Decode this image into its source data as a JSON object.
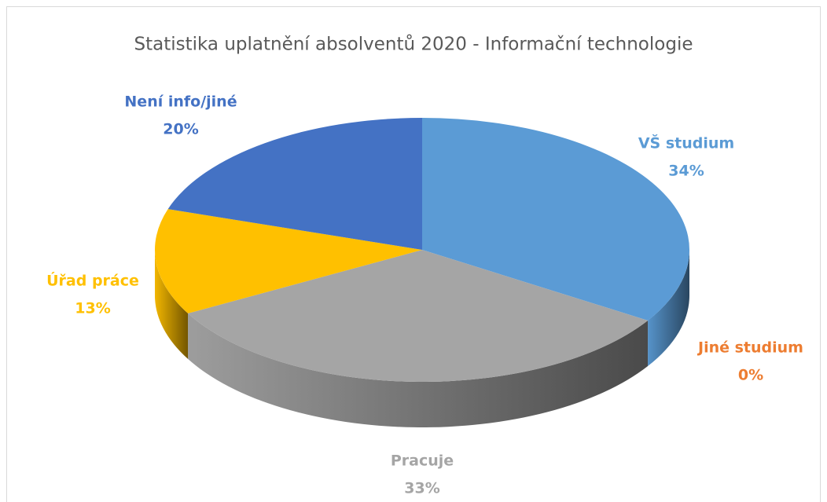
{
  "chart_data": {
    "type": "pie3d",
    "title": "Statistika uplatnění absolventů 2020 - Informační technologie",
    "categories": [
      "VŠ studium",
      "Jiné studium",
      "Pracuje",
      "Úřad práce",
      "Není info/jiné"
    ],
    "values": [
      34,
      0,
      33,
      13,
      20
    ],
    "value_labels": [
      "34%",
      "0%",
      "33%",
      "13%",
      "20%"
    ],
    "colors": [
      "#5b9bd5",
      "#ed7d31",
      "#a5a5a5",
      "#ffc000",
      "#4472c4"
    ]
  }
}
